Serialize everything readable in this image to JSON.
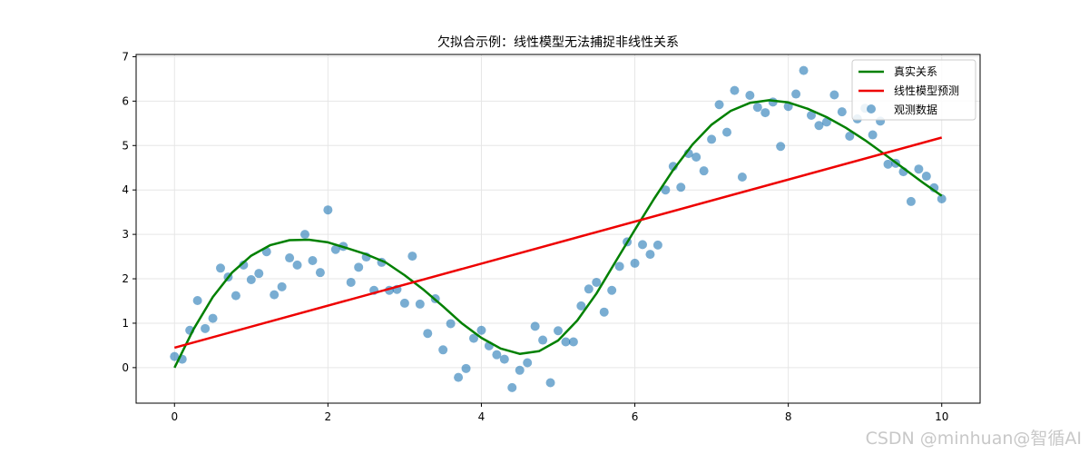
{
  "chart_data": {
    "type": "scatter",
    "title": "欠拟合示例：线性模型无法捕捉非线性关系",
    "xlabel": "",
    "ylabel": "",
    "xlim": [
      -0.5,
      10.5
    ],
    "ylim": [
      -0.8,
      7.05
    ],
    "xticks": [
      0,
      2,
      4,
      6,
      8,
      10
    ],
    "yticks": [
      0,
      1,
      2,
      3,
      4,
      5,
      6,
      7
    ],
    "grid": true,
    "legend_position": "top-right",
    "legend": [
      "真实关系",
      "线性模型预测",
      "观测数据"
    ],
    "series": [
      {
        "name": "真实关系",
        "kind": "line",
        "color": "#008000",
        "function": "0.5*x + sin(x)*... sampled",
        "x": [
          0,
          0.25,
          0.5,
          0.75,
          1,
          1.25,
          1.5,
          1.75,
          2,
          2.25,
          2.5,
          2.75,
          3,
          3.25,
          3.5,
          3.75,
          4,
          4.25,
          4.5,
          4.75,
          5,
          5.25,
          5.5,
          5.75,
          6,
          6.25,
          6.5,
          6.75,
          7,
          7.25,
          7.5,
          7.75,
          8,
          8.25,
          8.5,
          8.75,
          9,
          9.25,
          9.5,
          9.75,
          10
        ],
        "y": [
          0,
          0.87,
          1.59,
          2.14,
          2.52,
          2.76,
          2.87,
          2.88,
          2.82,
          2.69,
          2.55,
          2.37,
          2.08,
          1.75,
          1.38,
          0.99,
          0.67,
          0.43,
          0.31,
          0.37,
          0.61,
          1.06,
          1.67,
          2.39,
          3.1,
          3.8,
          4.45,
          5.02,
          5.47,
          5.78,
          5.96,
          6.02,
          5.97,
          5.83,
          5.64,
          5.4,
          5.12,
          4.81,
          4.49,
          4.17,
          3.87
        ]
      },
      {
        "name": "线性模型预测",
        "kind": "line",
        "color": "#ee0000",
        "x": [
          0,
          10
        ],
        "y": [
          0.45,
          5.18
        ]
      },
      {
        "name": "观测数据",
        "kind": "scatter",
        "color": "#1f77b4",
        "x": [
          0,
          0.1,
          0.2,
          0.3,
          0.4,
          0.5,
          0.6,
          0.7,
          0.8,
          0.9,
          1.0,
          1.1,
          1.2,
          1.3,
          1.4,
          1.5,
          1.6,
          1.7,
          1.8,
          1.9,
          2.0,
          2.1,
          2.2,
          2.3,
          2.4,
          2.5,
          2.6,
          2.7,
          2.8,
          2.9,
          3.0,
          3.1,
          3.2,
          3.3,
          3.4,
          3.5,
          3.6,
          3.7,
          3.8,
          3.9,
          4.0,
          4.1,
          4.2,
          4.3,
          4.4,
          4.5,
          4.6,
          4.7,
          4.8,
          4.9,
          5.0,
          5.1,
          5.2,
          5.3,
          5.4,
          5.5,
          5.6,
          5.7,
          5.8,
          5.9,
          6.0,
          6.1,
          6.2,
          6.3,
          6.4,
          6.5,
          6.6,
          6.7,
          6.8,
          6.9,
          7.0,
          7.1,
          7.2,
          7.3,
          7.4,
          7.5,
          7.6,
          7.7,
          7.8,
          7.9,
          8.0,
          8.1,
          8.2,
          8.3,
          8.4,
          8.5,
          8.6,
          8.7,
          8.8,
          8.9,
          9.0,
          9.1,
          9.2,
          9.3,
          9.4,
          9.5,
          9.6,
          9.7,
          9.8,
          9.9,
          10.0
        ],
        "y": [
          0.25,
          0.19,
          0.84,
          1.51,
          0.88,
          1.11,
          2.24,
          2.04,
          1.62,
          2.31,
          1.98,
          2.12,
          2.61,
          1.64,
          1.82,
          2.47,
          2.31,
          3.0,
          2.41,
          2.14,
          3.55,
          2.66,
          2.73,
          1.92,
          2.26,
          2.49,
          1.74,
          2.37,
          1.74,
          1.76,
          1.45,
          2.51,
          1.43,
          0.77,
          1.55,
          0.4,
          0.99,
          -0.22,
          -0.02,
          0.66,
          0.84,
          0.49,
          0.29,
          0.19,
          -0.45,
          -0.06,
          0.11,
          0.93,
          0.62,
          -0.34,
          0.83,
          0.58,
          0.58,
          1.39,
          1.77,
          1.92,
          1.25,
          1.74,
          2.28,
          2.83,
          2.35,
          2.77,
          2.55,
          2.76,
          4.0,
          4.53,
          4.06,
          4.82,
          4.74,
          4.43,
          5.14,
          5.92,
          5.3,
          6.24,
          4.29,
          6.13,
          5.86,
          5.74,
          5.98,
          4.98,
          5.88,
          6.16,
          6.69,
          5.68,
          5.45,
          5.53,
          6.14,
          5.76,
          5.21,
          5.6,
          5.84,
          5.24,
          5.55,
          4.58,
          4.6,
          4.41,
          3.74,
          4.47,
          4.31,
          4.05,
          3.8
        ]
      }
    ]
  },
  "watermark": "CSDN @minhuan@智循AI"
}
